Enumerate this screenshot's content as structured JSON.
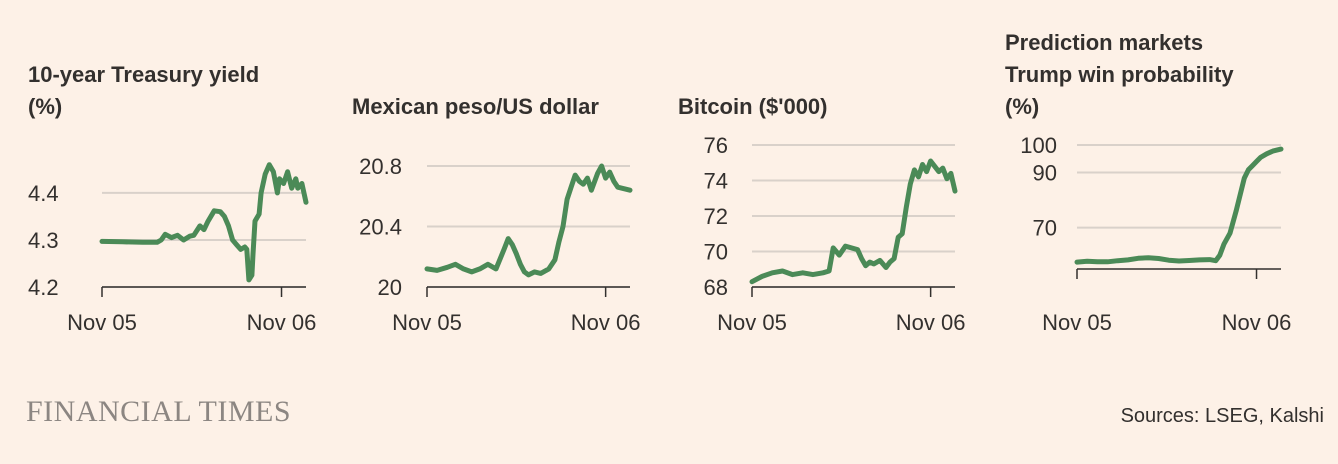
{
  "brand": {
    "logo_text": "FINANCIAL TIMES"
  },
  "sources": "Sources: LSEG, Kalshi",
  "colors": {
    "background": "#fdf1e7",
    "series": "#4b8a57",
    "grid": "#d9d1ca",
    "text": "#33302e",
    "logo": "#8c8682"
  },
  "chart_data": [
    {
      "type": "line",
      "title": [
        "10-year Treasury yield",
        "(%)"
      ],
      "x_labels": [
        "Nov 05",
        "Nov 06"
      ],
      "y_ticks": [
        4.2,
        4.3,
        4.4
      ],
      "y_range": [
        4.2,
        4.47
      ],
      "x_range": [
        0,
        1
      ],
      "series": [
        {
          "name": "10-year Treasury yield",
          "points": [
            [
              0,
              4.297
            ],
            [
              0.1,
              4.296
            ],
            [
              0.2,
              4.295
            ],
            [
              0.27,
              4.295
            ],
            [
              0.29,
              4.3
            ],
            [
              0.31,
              4.312
            ],
            [
              0.34,
              4.305
            ],
            [
              0.37,
              4.31
            ],
            [
              0.4,
              4.3
            ],
            [
              0.43,
              4.308
            ],
            [
              0.45,
              4.31
            ],
            [
              0.48,
              4.33
            ],
            [
              0.5,
              4.322
            ],
            [
              0.52,
              4.34
            ],
            [
              0.55,
              4.362
            ],
            [
              0.58,
              4.36
            ],
            [
              0.6,
              4.35
            ],
            [
              0.62,
              4.33
            ],
            [
              0.64,
              4.3
            ],
            [
              0.66,
              4.29
            ],
            [
              0.68,
              4.28
            ],
            [
              0.7,
              4.285
            ],
            [
              0.71,
              4.28
            ],
            [
              0.72,
              4.215
            ],
            [
              0.735,
              4.225
            ],
            [
              0.74,
              4.27
            ],
            [
              0.75,
              4.34
            ],
            [
              0.77,
              4.355
            ],
            [
              0.78,
              4.4
            ],
            [
              0.8,
              4.44
            ],
            [
              0.82,
              4.46
            ],
            [
              0.84,
              4.445
            ],
            [
              0.86,
              4.4
            ],
            [
              0.87,
              4.43
            ],
            [
              0.89,
              4.42
            ],
            [
              0.91,
              4.445
            ],
            [
              0.93,
              4.41
            ],
            [
              0.95,
              4.43
            ],
            [
              0.96,
              4.41
            ],
            [
              0.98,
              4.42
            ],
            [
              1,
              4.38
            ]
          ]
        }
      ]
    },
    {
      "type": "line",
      "title": [
        "Mexican peso/US dollar"
      ],
      "x_labels": [
        "Nov 05",
        "Nov 06"
      ],
      "y_ticks": [
        20,
        20.4,
        20.8
      ],
      "y_range": [
        20,
        20.84
      ],
      "x_range": [
        0,
        1
      ],
      "series": [
        {
          "name": "Mexican peso/US dollar",
          "points": [
            [
              0,
              20.12
            ],
            [
              0.05,
              20.11
            ],
            [
              0.1,
              20.13
            ],
            [
              0.14,
              20.15
            ],
            [
              0.18,
              20.12
            ],
            [
              0.22,
              20.1
            ],
            [
              0.26,
              20.12
            ],
            [
              0.3,
              20.15
            ],
            [
              0.34,
              20.12
            ],
            [
              0.38,
              20.25
            ],
            [
              0.4,
              20.32
            ],
            [
              0.42,
              20.28
            ],
            [
              0.44,
              20.22
            ],
            [
              0.46,
              20.15
            ],
            [
              0.48,
              20.1
            ],
            [
              0.5,
              20.08
            ],
            [
              0.53,
              20.1
            ],
            [
              0.56,
              20.09
            ],
            [
              0.6,
              20.12
            ],
            [
              0.63,
              20.18
            ],
            [
              0.65,
              20.3
            ],
            [
              0.67,
              20.4
            ],
            [
              0.69,
              20.58
            ],
            [
              0.71,
              20.66
            ],
            [
              0.73,
              20.74
            ],
            [
              0.75,
              20.7
            ],
            [
              0.77,
              20.68
            ],
            [
              0.79,
              20.72
            ],
            [
              0.81,
              20.64
            ],
            [
              0.84,
              20.75
            ],
            [
              0.86,
              20.8
            ],
            [
              0.88,
              20.72
            ],
            [
              0.9,
              20.76
            ],
            [
              0.92,
              20.7
            ],
            [
              0.94,
              20.66
            ],
            [
              1,
              20.64
            ]
          ]
        }
      ]
    },
    {
      "type": "line",
      "title": [
        "Bitcoin ($'000)"
      ],
      "x_labels": [
        "Nov 05",
        "Nov 06"
      ],
      "y_ticks": [
        68,
        70,
        72,
        74,
        76
      ],
      "y_range": [
        68,
        76
      ],
      "x_range": [
        0,
        1
      ],
      "series": [
        {
          "name": "Bitcoin ($'000)",
          "points": [
            [
              0,
              68.3
            ],
            [
              0.05,
              68.6
            ],
            [
              0.1,
              68.8
            ],
            [
              0.15,
              68.9
            ],
            [
              0.2,
              68.7
            ],
            [
              0.25,
              68.8
            ],
            [
              0.3,
              68.7
            ],
            [
              0.35,
              68.8
            ],
            [
              0.38,
              68.9
            ],
            [
              0.4,
              70.2
            ],
            [
              0.43,
              69.8
            ],
            [
              0.46,
              70.3
            ],
            [
              0.49,
              70.2
            ],
            [
              0.52,
              70.1
            ],
            [
              0.54,
              69.6
            ],
            [
              0.56,
              69.2
            ],
            [
              0.58,
              69.4
            ],
            [
              0.6,
              69.3
            ],
            [
              0.63,
              69.5
            ],
            [
              0.66,
              69.1
            ],
            [
              0.68,
              69.4
            ],
            [
              0.7,
              69.6
            ],
            [
              0.72,
              70.8
            ],
            [
              0.74,
              71.0
            ],
            [
              0.76,
              72.5
            ],
            [
              0.78,
              73.8
            ],
            [
              0.8,
              74.6
            ],
            [
              0.82,
              74.2
            ],
            [
              0.84,
              74.9
            ],
            [
              0.86,
              74.5
            ],
            [
              0.88,
              75.1
            ],
            [
              0.9,
              74.8
            ],
            [
              0.92,
              74.5
            ],
            [
              0.94,
              74.7
            ],
            [
              0.96,
              74.1
            ],
            [
              0.98,
              74.4
            ],
            [
              1,
              73.4
            ]
          ]
        }
      ]
    },
    {
      "type": "line",
      "title": [
        "Prediction markets",
        "Trump win probability",
        "(%)"
      ],
      "x_labels": [
        "Nov 05",
        "Nov 06"
      ],
      "y_ticks": [
        70,
        90,
        100
      ],
      "y_range": [
        55,
        100
      ],
      "x_range": [
        0,
        1
      ],
      "series": [
        {
          "name": "Trump win probability",
          "points": [
            [
              0,
              57.5
            ],
            [
              0.05,
              57.8
            ],
            [
              0.1,
              57.6
            ],
            [
              0.15,
              57.6
            ],
            [
              0.2,
              58.0
            ],
            [
              0.25,
              58.3
            ],
            [
              0.3,
              58.9
            ],
            [
              0.35,
              59.1
            ],
            [
              0.4,
              58.8
            ],
            [
              0.45,
              58.2
            ],
            [
              0.5,
              57.9
            ],
            [
              0.55,
              58.1
            ],
            [
              0.6,
              58.3
            ],
            [
              0.65,
              58.4
            ],
            [
              0.68,
              58.0
            ],
            [
              0.7,
              60.0
            ],
            [
              0.72,
              64.0
            ],
            [
              0.75,
              68.0
            ],
            [
              0.78,
              76.0
            ],
            [
              0.8,
              82.0
            ],
            [
              0.82,
              88.0
            ],
            [
              0.84,
              91.0
            ],
            [
              0.86,
              92.5
            ],
            [
              0.88,
              94.0
            ],
            [
              0.9,
              95.5
            ],
            [
              0.93,
              96.8
            ],
            [
              0.96,
              97.8
            ],
            [
              1,
              98.5
            ]
          ]
        }
      ]
    }
  ]
}
